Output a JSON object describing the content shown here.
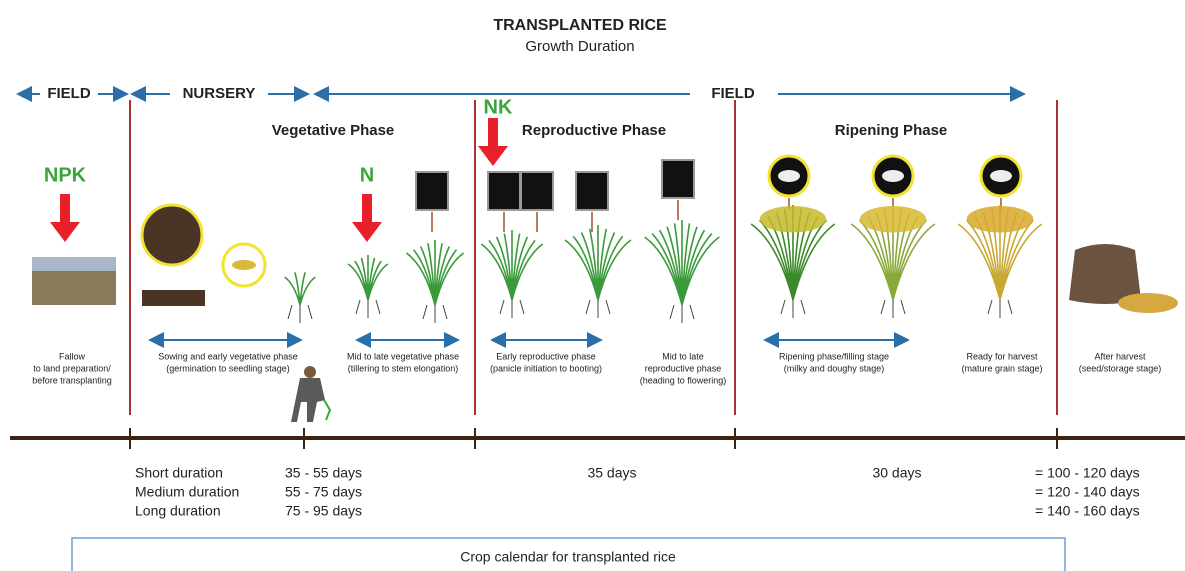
{
  "header": {
    "title": "TRANSPLANTED RICE",
    "subtitle": "Growth Duration"
  },
  "zones": [
    "FIELD",
    "NURSERY",
    "FIELD"
  ],
  "phases": [
    "Vegetative Phase",
    "Reproductive Phase",
    "Ripening Phase"
  ],
  "fertilizers": [
    "NPK",
    "N",
    "NK"
  ],
  "stages": [
    {
      "lines": [
        "Fallow",
        "to land preparation/",
        "before transplanting"
      ]
    },
    {
      "lines": [
        "Sowing and early vegetative phase",
        "(germination to seedling stage)"
      ]
    },
    {
      "lines": [
        "Mid to late vegetative phase",
        "(tillering to stem elongation)"
      ]
    },
    {
      "lines": [
        "Early reproductive phase",
        "(panicle initiation to booting)"
      ]
    },
    {
      "lines": [
        "Mid to late",
        "reproductive phase",
        "(heading to flowering)"
      ]
    },
    {
      "lines": [
        "Ripening phase/filling stage",
        "(milky and doughy stage)"
      ]
    },
    {
      "lines": [
        "Ready for harvest",
        "(mature grain stage)"
      ]
    },
    {
      "lines": [
        "After harvest",
        "(seed/storage stage)"
      ]
    }
  ],
  "durations": {
    "rows": [
      {
        "label": "Short duration",
        "nursery": "35 - 55 days",
        "total": "= 100 - 120 days"
      },
      {
        "label": "Medium duration",
        "nursery": "55 - 75 days",
        "total": "= 120 - 140 days"
      },
      {
        "label": "Long duration",
        "nursery": "75 - 95 days",
        "total": "= 140 - 160 days"
      }
    ],
    "reproductive": "35 days",
    "ripening": "30 days"
  },
  "caption": "Crop calendar for transplanted rice"
}
